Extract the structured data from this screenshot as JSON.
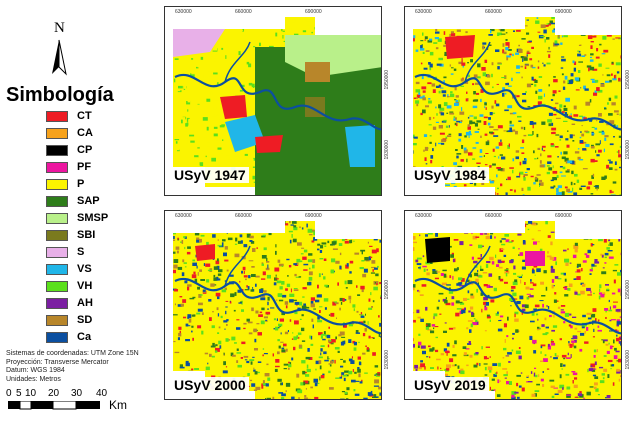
{
  "legend": {
    "north_label": "N",
    "title": "Simbología",
    "items": [
      {
        "code": "CT",
        "color": "#ee1c24"
      },
      {
        "code": "CA",
        "color": "#f7a21b"
      },
      {
        "code": "CP",
        "color": "#000000"
      },
      {
        "code": "PF",
        "color": "#ec16a0"
      },
      {
        "code": "P",
        "color": "#fbf400"
      },
      {
        "code": "SAP",
        "color": "#2e7d1a"
      },
      {
        "code": "SMSP",
        "color": "#b9f08a"
      },
      {
        "code": "SBI",
        "color": "#7a7a1e"
      },
      {
        "code": "S",
        "color": "#e8b0e8"
      },
      {
        "code": "VS",
        "color": "#20b6e8"
      },
      {
        "code": "VH",
        "color": "#5be01c"
      },
      {
        "code": "AH",
        "color": "#7b1fa2"
      },
      {
        "code": "SD",
        "color": "#b8862a"
      },
      {
        "code": "Ca",
        "color": "#0b4fa0"
      }
    ]
  },
  "notes": [
    "Sistemas de coordenadas: UTM Zone 15N",
    "Proyección: Transverse Mercator",
    "Datum: WGS 1984",
    "Unidades: Metros"
  ],
  "scalebar": {
    "ticks": [
      "0",
      "5",
      "10",
      "20",
      "30",
      "40"
    ],
    "unit": "Km"
  },
  "maps": [
    {
      "label": "USyV 1947",
      "x_ticks": [
        "630000",
        "660000",
        "690000"
      ],
      "y_ticks": [
        "1950000",
        "1930000"
      ]
    },
    {
      "label": "USyV 1984",
      "x_ticks": [
        "630000",
        "660000",
        "690000"
      ],
      "y_ticks": [
        "1950000",
        "1930000"
      ]
    },
    {
      "label": "USyV 2000",
      "x_ticks": [
        "630000",
        "660000",
        "690000"
      ],
      "y_ticks": [
        "1950000",
        "1930000"
      ]
    },
    {
      "label": "USyV 2019",
      "x_ticks": [
        "630000",
        "660000",
        "690000"
      ],
      "y_ticks": [
        "1950000",
        "1930000"
      ]
    }
  ]
}
